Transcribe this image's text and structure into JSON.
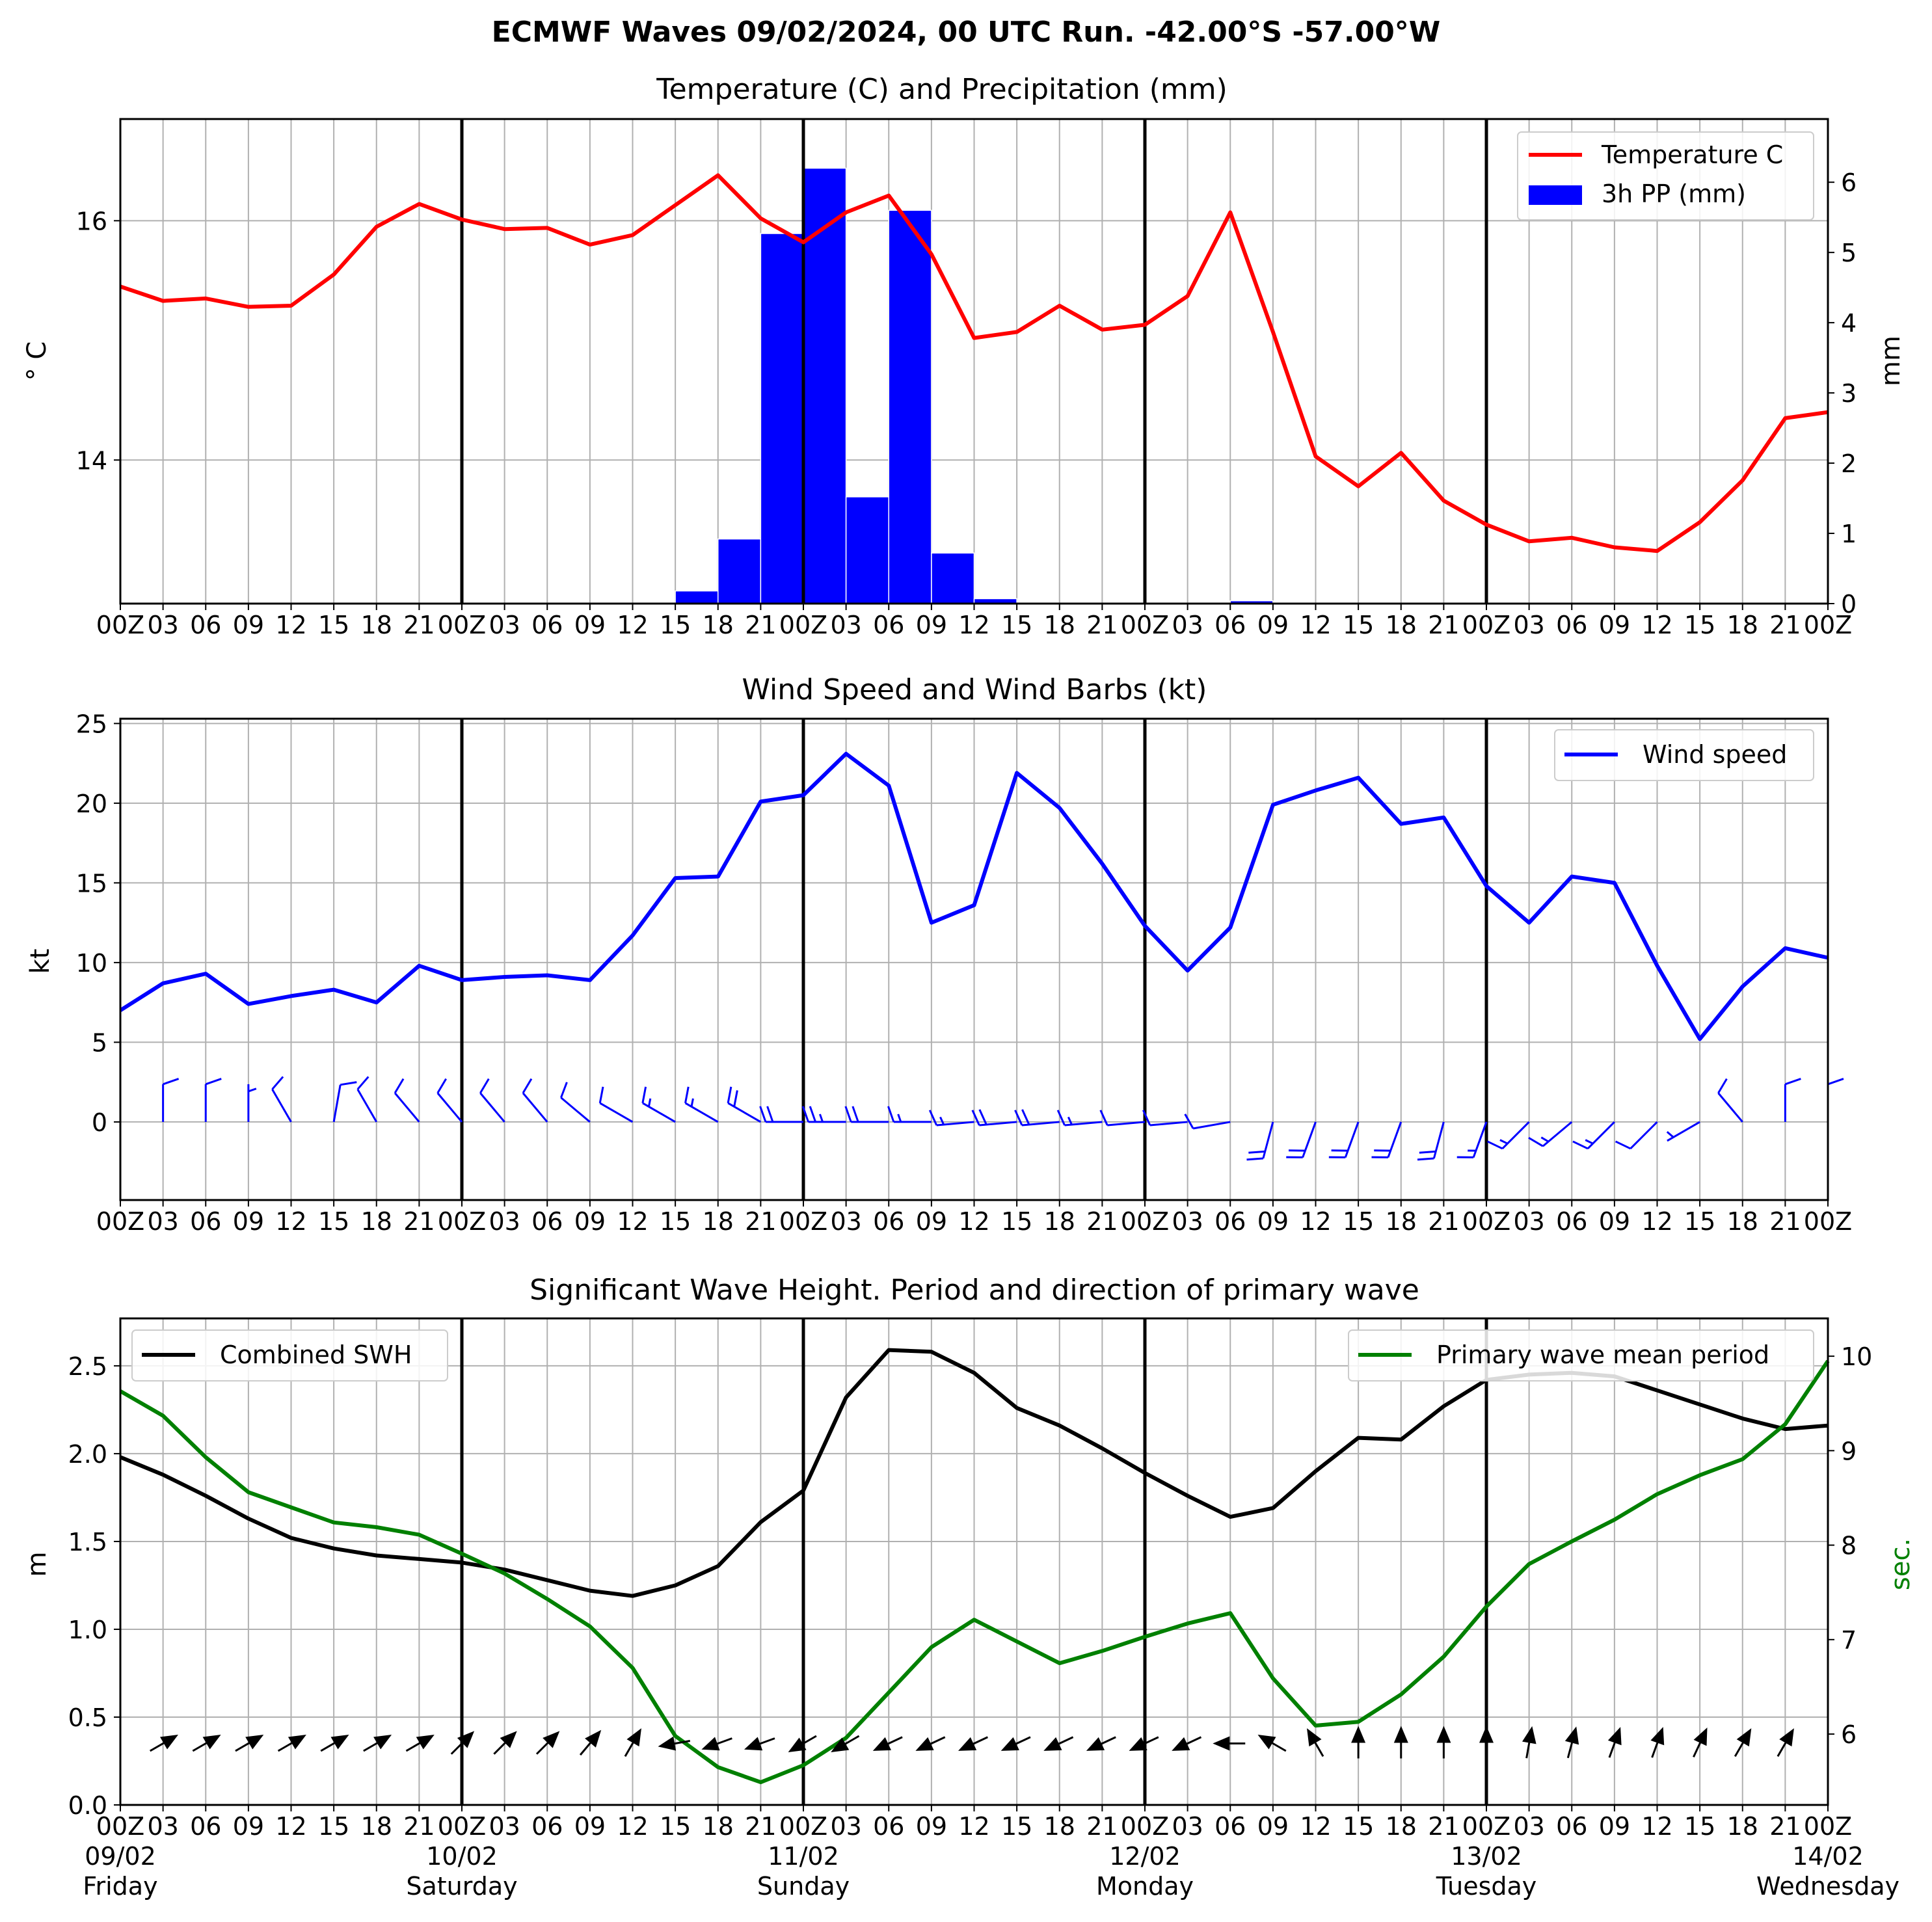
{
  "figure": {
    "suptitle": "ECMWF Waves 09/02/2024, 00 UTC Run. -42.00°S -57.00°W"
  },
  "time_axis": {
    "step_hours": 3,
    "tick_labels": [
      "00Z",
      "03",
      "06",
      "09",
      "12",
      "15",
      "18",
      "21",
      "00Z",
      "03",
      "06",
      "09",
      "12",
      "15",
      "18",
      "21",
      "00Z",
      "03",
      "06",
      "09",
      "12",
      "15",
      "18",
      "21",
      "00Z",
      "03",
      "06",
      "09",
      "12",
      "15",
      "18",
      "21",
      "00Z",
      "03",
      "06",
      "09",
      "12",
      "15",
      "18",
      "21",
      "00Z"
    ],
    "day_labels": [
      {
        "date": "09/02",
        "day": "Friday"
      },
      {
        "date": "10/02",
        "day": "Saturday"
      },
      {
        "date": "11/02",
        "day": "Sunday"
      },
      {
        "date": "12/02",
        "day": "Monday"
      },
      {
        "date": "13/02",
        "day": "Tuesday"
      },
      {
        "date": "14/02",
        "day": "Wednesday"
      }
    ]
  },
  "chart_data": [
    {
      "type": "line+bar",
      "title": "Temperature (C) and Precipitation (mm)",
      "ylabel": "° C",
      "ylabel_right": "mm",
      "ylim": [
        12.8,
        16.85
      ],
      "yticks": [
        14,
        16
      ],
      "ylim_right": [
        0,
        6.9
      ],
      "yticks_right": [
        0,
        1,
        2,
        3,
        4,
        5,
        6
      ],
      "legend": {
        "position": "upper right",
        "entries": [
          "Temperature C",
          "3h PP (mm)"
        ]
      },
      "grid": true,
      "series": [
        {
          "name": "Temperature C",
          "kind": "line",
          "color": "#ff0000",
          "axis": "left",
          "values": [
            15.45,
            15.33,
            15.35,
            15.28,
            15.29,
            15.55,
            15.95,
            16.14,
            16.01,
            15.93,
            15.94,
            15.8,
            15.88,
            16.13,
            16.38,
            16.02,
            15.82,
            16.07,
            16.21,
            15.72,
            15.02,
            15.07,
            15.29,
            15.09,
            15.13,
            15.37,
            16.07,
            15.07,
            14.03,
            13.78,
            14.06,
            13.66,
            13.46,
            13.32,
            13.35,
            13.27,
            13.24,
            13.48,
            13.83,
            14.35,
            14.4
          ]
        },
        {
          "name": "3h PP (mm)",
          "kind": "bar",
          "color": "#0000ff",
          "axis": "right",
          "values": [
            0,
            0,
            0,
            0,
            0,
            0,
            0,
            0,
            0,
            0,
            0,
            0,
            0,
            0.18,
            0.92,
            5.27,
            6.2,
            1.52,
            5.6,
            0.72,
            0.07,
            0,
            0,
            0,
            0,
            0,
            0.04,
            0,
            0,
            0,
            0,
            0,
            0,
            0,
            0,
            0,
            0,
            0,
            0,
            0
          ]
        }
      ]
    },
    {
      "type": "line",
      "title": "Wind Speed and Wind Barbs (kt)",
      "ylabel": "kt",
      "ylim": [
        -4.9,
        25.3
      ],
      "yticks": [
        0,
        5,
        10,
        15,
        20,
        25
      ],
      "legend": {
        "position": "upper right",
        "entries": [
          "Wind speed"
        ]
      },
      "grid": true,
      "series": [
        {
          "name": "Wind speed",
          "color": "#0000ff",
          "values": [
            7.0,
            8.7,
            9.3,
            7.4,
            7.9,
            8.3,
            7.5,
            9.8,
            8.9,
            9.1,
            9.2,
            8.9,
            11.7,
            15.3,
            15.4,
            20.1,
            20.5,
            23.1,
            21.1,
            12.5,
            13.6,
            21.9,
            19.7,
            16.2,
            12.3,
            9.5,
            12.2,
            19.9,
            20.8,
            21.6,
            18.7,
            19.1,
            14.8,
            12.5,
            15.4,
            15.0,
            9.8,
            5.2,
            8.5,
            10.9,
            10.3
          ]
        }
      ],
      "wind_barbs": {
        "color": "#0000ff",
        "speed_kt": [
          7.0,
          8.7,
          9.3,
          7.4,
          7.9,
          8.3,
          7.5,
          9.8,
          8.9,
          9.1,
          9.2,
          8.9,
          11.7,
          15.3,
          15.4,
          20.1,
          20.5,
          23.1,
          21.1,
          12.5,
          13.6,
          21.9,
          19.7,
          16.2,
          12.3,
          9.5,
          12.2,
          19.9,
          20.8,
          21.6,
          18.7,
          19.1,
          14.8,
          12.5,
          15.4,
          15.0,
          9.8,
          5.2,
          8.5,
          10.9,
          10.3
        ],
        "direction_from_deg": [
          0,
          0,
          0,
          0,
          330,
          10,
          330,
          320,
          320,
          320,
          320,
          310,
          300,
          300,
          300,
          300,
          270,
          270,
          270,
          270,
          265,
          265,
          265,
          265,
          265,
          265,
          260,
          195,
          200,
          200,
          200,
          195,
          200,
          225,
          230,
          225,
          225,
          240,
          320,
          0,
          0
        ]
      }
    },
    {
      "type": "line",
      "title": "Significant Wave Height. Period and direction of primary wave",
      "ylabel": "m",
      "ylabel_right": "sec.",
      "ylabel_right_color": "#008000",
      "ylim": [
        0,
        2.77
      ],
      "yticks": [
        0.0,
        0.5,
        1.0,
        1.5,
        2.0,
        2.5
      ],
      "ylim_right": [
        5.25,
        10.4
      ],
      "yticks_right": [
        6,
        7,
        8,
        9,
        10
      ],
      "legends": [
        {
          "position": "upper left",
          "entries": [
            "Combined SWH"
          ]
        },
        {
          "position": "upper right",
          "entries": [
            "Primary wave mean period"
          ]
        }
      ],
      "grid": true,
      "series": [
        {
          "name": "Combined SWH",
          "color": "#000000",
          "axis": "left",
          "values": [
            1.98,
            1.88,
            1.76,
            1.63,
            1.52,
            1.46,
            1.42,
            1.4,
            1.38,
            1.34,
            1.28,
            1.22,
            1.19,
            1.25,
            1.36,
            1.61,
            1.79,
            2.32,
            2.59,
            2.58,
            2.46,
            2.26,
            2.16,
            2.03,
            1.89,
            1.76,
            1.64,
            1.69,
            1.9,
            2.09,
            2.08,
            2.27,
            2.42,
            2.45,
            2.46,
            2.44,
            2.36,
            2.28,
            2.2,
            2.14,
            2.16
          ]
        },
        {
          "name": "Primary wave mean period",
          "color": "#008000",
          "axis": "right",
          "values": [
            9.63,
            9.37,
            8.93,
            8.56,
            8.4,
            8.24,
            8.19,
            8.11,
            7.91,
            7.7,
            7.43,
            7.14,
            6.7,
            5.98,
            5.65,
            5.49,
            5.67,
            5.96,
            6.44,
            6.92,
            7.21,
            6.98,
            6.75,
            6.88,
            7.03,
            7.17,
            7.28,
            6.59,
            6.09,
            6.13,
            6.42,
            6.82,
            7.35,
            7.8,
            8.04,
            8.27,
            8.54,
            8.74,
            8.91,
            9.28,
            9.95
          ]
        }
      ],
      "wave_direction_arrows": {
        "color": "#000000",
        "toward_deg": [
          60,
          60,
          60,
          60,
          60,
          60,
          60,
          60,
          45,
          45,
          45,
          40,
          30,
          260,
          250,
          250,
          240,
          240,
          245,
          245,
          245,
          245,
          245,
          245,
          245,
          245,
          270,
          300,
          330,
          0,
          0,
          0,
          0,
          10,
          15,
          20,
          20,
          25,
          30,
          30,
          30
        ]
      }
    }
  ]
}
